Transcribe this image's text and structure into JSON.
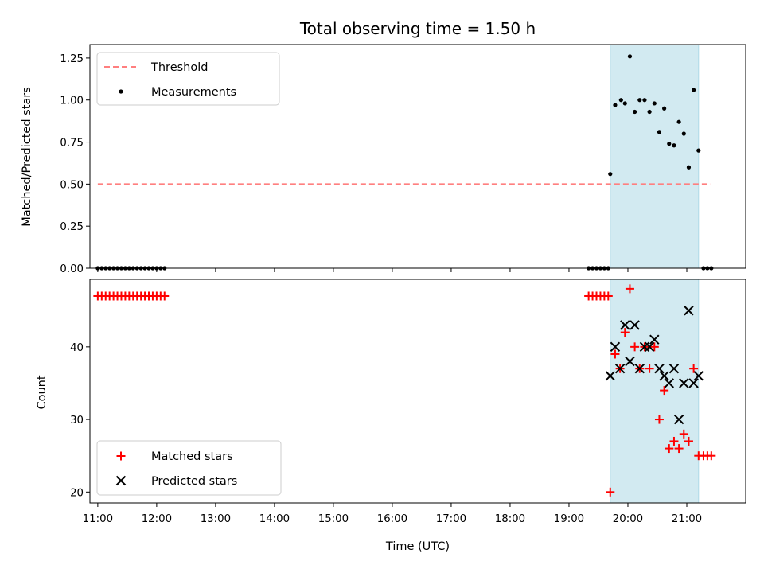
{
  "chart_data": {
    "title": "Total observing time = 1.50 h",
    "xlabel": "Time (UTC)",
    "x_ticks": [
      "11:00",
      "12:00",
      "13:00",
      "14:00",
      "15:00",
      "16:00",
      "17:00",
      "18:00",
      "19:00",
      "20:00",
      "21:00"
    ],
    "x_range": [
      "10:52",
      "22:00"
    ],
    "highlight_span": [
      "19:42",
      "21:12"
    ],
    "colors": {
      "threshold": "#ff7f7f",
      "measurement": "#000000",
      "matched": "#ff0000",
      "predicted": "#000000",
      "span": "#add8e6"
    },
    "panels": [
      {
        "type": "scatter",
        "ylabel": "Matched/Predicted stars",
        "ylim": [
          0,
          1.33
        ],
        "y_ticks": [
          0.0,
          0.25,
          0.5,
          0.75,
          1.0,
          1.25
        ],
        "y_tick_labels": [
          "0.00",
          "0.25",
          "0.50",
          "0.75",
          "1.00",
          "1.25"
        ],
        "legend_position": "upper-left",
        "threshold": {
          "name": "Threshold",
          "value": 0.5,
          "x_start": "11:00",
          "x_end": "21:25"
        },
        "measurements": {
          "name": "Measurements",
          "points": [
            [
              "11:00",
              0
            ],
            [
              "11:04",
              0
            ],
            [
              "11:08",
              0
            ],
            [
              "11:12",
              0
            ],
            [
              "11:16",
              0
            ],
            [
              "11:20",
              0
            ],
            [
              "11:24",
              0
            ],
            [
              "11:28",
              0
            ],
            [
              "11:32",
              0
            ],
            [
              "11:36",
              0
            ],
            [
              "11:40",
              0
            ],
            [
              "11:44",
              0
            ],
            [
              "11:48",
              0
            ],
            [
              "11:52",
              0
            ],
            [
              "11:56",
              0
            ],
            [
              "12:00",
              0
            ],
            [
              "12:04",
              0
            ],
            [
              "12:08",
              0
            ],
            [
              "19:20",
              0
            ],
            [
              "19:24",
              0
            ],
            [
              "19:28",
              0
            ],
            [
              "19:32",
              0
            ],
            [
              "19:36",
              0
            ],
            [
              "19:40",
              0
            ],
            [
              "19:42",
              0.56
            ],
            [
              "19:47",
              0.97
            ],
            [
              "19:53",
              1.0
            ],
            [
              "19:57",
              0.98
            ],
            [
              "20:02",
              1.26
            ],
            [
              "20:07",
              0.93
            ],
            [
              "20:12",
              1.0
            ],
            [
              "20:17",
              1.0
            ],
            [
              "20:22",
              0.93
            ],
            [
              "20:27",
              0.98
            ],
            [
              "20:32",
              0.81
            ],
            [
              "20:37",
              0.95
            ],
            [
              "20:42",
              0.74
            ],
            [
              "20:47",
              0.73
            ],
            [
              "20:52",
              0.87
            ],
            [
              "20:57",
              0.8
            ],
            [
              "21:02",
              0.6
            ],
            [
              "21:07",
              1.06
            ],
            [
              "21:12",
              0.7
            ],
            [
              "21:17",
              0
            ],
            [
              "21:21",
              0
            ],
            [
              "21:25",
              0
            ]
          ]
        }
      },
      {
        "type": "scatter",
        "ylabel": "Count",
        "ylim": [
          18.5,
          49.3
        ],
        "y_ticks": [
          20,
          30,
          40
        ],
        "y_tick_labels": [
          "20",
          "30",
          "40"
        ],
        "legend_position": "lower-left",
        "series": [
          {
            "name": "Matched stars",
            "marker": "plus",
            "points": [
              [
                "11:00",
                47
              ],
              [
                "11:04",
                47
              ],
              [
                "11:08",
                47
              ],
              [
                "11:12",
                47
              ],
              [
                "11:16",
                47
              ],
              [
                "11:20",
                47
              ],
              [
                "11:24",
                47
              ],
              [
                "11:28",
                47
              ],
              [
                "11:32",
                47
              ],
              [
                "11:36",
                47
              ],
              [
                "11:40",
                47
              ],
              [
                "11:44",
                47
              ],
              [
                "11:48",
                47
              ],
              [
                "11:52",
                47
              ],
              [
                "11:56",
                47
              ],
              [
                "12:00",
                47
              ],
              [
                "12:04",
                47
              ],
              [
                "12:08",
                47
              ],
              [
                "19:20",
                47
              ],
              [
                "19:24",
                47
              ],
              [
                "19:28",
                47
              ],
              [
                "19:32",
                47
              ],
              [
                "19:36",
                47
              ],
              [
                "19:40",
                47
              ],
              [
                "19:42",
                20
              ],
              [
                "19:47",
                39
              ],
              [
                "19:52",
                37
              ],
              [
                "19:57",
                42
              ],
              [
                "20:02",
                48
              ],
              [
                "20:07",
                40
              ],
              [
                "20:12",
                37
              ],
              [
                "20:17",
                40
              ],
              [
                "20:22",
                37
              ],
              [
                "20:27",
                40
              ],
              [
                "20:32",
                30
              ],
              [
                "20:37",
                34
              ],
              [
                "20:42",
                26
              ],
              [
                "20:47",
                27
              ],
              [
                "20:52",
                26
              ],
              [
                "20:57",
                28
              ],
              [
                "21:02",
                27
              ],
              [
                "21:07",
                37
              ],
              [
                "21:12",
                25
              ],
              [
                "21:17",
                25
              ],
              [
                "21:21",
                25
              ],
              [
                "21:25",
                25
              ]
            ]
          },
          {
            "name": "Predicted stars",
            "marker": "x",
            "points": [
              [
                "19:42",
                36
              ],
              [
                "19:47",
                40
              ],
              [
                "19:52",
                37
              ],
              [
                "19:57",
                43
              ],
              [
                "20:02",
                38
              ],
              [
                "20:07",
                43
              ],
              [
                "20:12",
                37
              ],
              [
                "20:17",
                40
              ],
              [
                "20:22",
                40
              ],
              [
                "20:27",
                41
              ],
              [
                "20:32",
                37
              ],
              [
                "20:37",
                36
              ],
              [
                "20:42",
                35
              ],
              [
                "20:47",
                37
              ],
              [
                "20:52",
                30
              ],
              [
                "20:57",
                35
              ],
              [
                "21:02",
                45
              ],
              [
                "21:07",
                35
              ],
              [
                "21:12",
                36
              ]
            ]
          }
        ]
      }
    ]
  }
}
